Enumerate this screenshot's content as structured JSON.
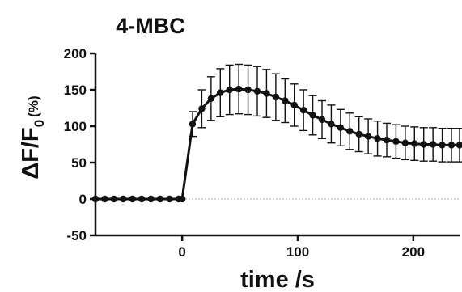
{
  "chart_data": {
    "type": "line",
    "title": "4-MBC",
    "xlabel": "time /s",
    "ylabel": "ΔF/F",
    "ylabel_subscript": "0",
    "ylabel_unit": "(%)",
    "xlim": [
      -75,
      240
    ],
    "ylim": [
      -50,
      200
    ],
    "xticks": [
      0,
      100,
      200
    ],
    "yticks": [
      -50,
      0,
      50,
      100,
      150,
      200
    ],
    "reference_line_y": 0,
    "grid": false,
    "series": [
      {
        "x": [
          -75,
          -67,
          -59,
          -51,
          -43,
          -35,
          -27,
          -19,
          -11,
          -3,
          0,
          9,
          17,
          25,
          33,
          41,
          49,
          57,
          65,
          73,
          81,
          89,
          97,
          105,
          113,
          121,
          129,
          137,
          145,
          153,
          161,
          169,
          177,
          185,
          193,
          201,
          209,
          217,
          225,
          233,
          240
        ],
        "y": [
          0,
          0,
          0,
          0,
          0,
          0,
          0,
          0,
          0,
          0,
          0,
          103,
          124,
          138,
          146,
          150,
          151,
          150,
          148,
          145,
          140,
          135,
          129,
          122,
          115,
          109,
          103,
          98,
          93,
          89,
          86,
          83,
          81,
          79,
          77,
          76,
          75,
          75,
          74,
          74,
          74
        ],
        "error": [
          0,
          0,
          0,
          0,
          0,
          0,
          0,
          0,
          0,
          0,
          0,
          17,
          26,
          30,
          33,
          34,
          34,
          34,
          34,
          33,
          32,
          30,
          29,
          28,
          27,
          26,
          26,
          25,
          25,
          24,
          24,
          24,
          23,
          23,
          23,
          23,
          23,
          23,
          23,
          23,
          23
        ]
      }
    ]
  }
}
